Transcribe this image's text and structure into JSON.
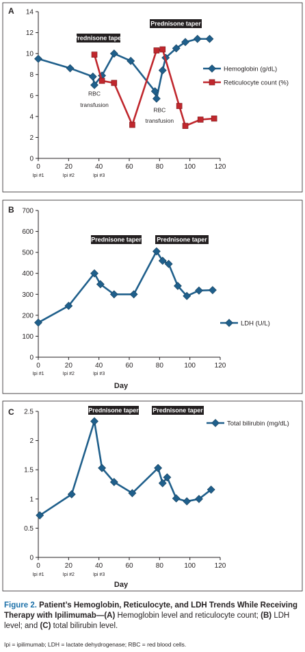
{
  "chart_data": [
    {
      "panel": "A",
      "type": "line",
      "x": [],
      "xlim": [
        0,
        120
      ],
      "ylim": [
        0,
        14
      ],
      "xticks": [
        0,
        20,
        40,
        60,
        80,
        100,
        120
      ],
      "yticks": [
        0,
        2,
        4,
        6,
        8,
        10,
        12,
        14
      ],
      "xlabel": "",
      "ylabel": "",
      "ipi_labels": [
        {
          "x": 0,
          "label": "Ipi #1"
        },
        {
          "x": 20,
          "label": "Ipi #2"
        },
        {
          "x": 40,
          "label": "Ipi #3"
        }
      ],
      "series": [
        {
          "name": "Hemoglobin (g/dL)",
          "color": "#1f5f8b",
          "marker": "diamond",
          "points": [
            [
              0,
              9.5
            ],
            [
              21,
              8.6
            ],
            [
              36,
              7.8
            ],
            [
              37,
              7.0
            ],
            [
              42,
              7.9
            ],
            [
              50,
              10.0
            ],
            [
              61,
              9.3
            ],
            [
              77,
              6.4
            ],
            [
              78,
              5.7
            ],
            [
              82,
              8.4
            ],
            [
              84,
              9.6
            ],
            [
              91,
              10.5
            ],
            [
              97,
              11.1
            ],
            [
              105,
              11.4
            ],
            [
              113,
              11.4
            ]
          ]
        },
        {
          "name": "Reticulocyte count (%)",
          "color": "#c0272d",
          "marker": "square",
          "points": [
            [
              37,
              9.9
            ],
            [
              42,
              7.4
            ],
            [
              50,
              7.2
            ],
            [
              62,
              3.2
            ],
            [
              78,
              10.3
            ],
            [
              82,
              10.4
            ],
            [
              93,
              5.0
            ],
            [
              97,
              3.1
            ],
            [
              107,
              3.7
            ],
            [
              116,
              3.8
            ]
          ]
        }
      ],
      "annotations": [
        {
          "text": "Prednisone taper",
          "x": 45
        },
        {
          "text": "Prednisone taper",
          "x": 96
        },
        {
          "text": "RBC",
          "x": 37,
          "y": 6.0
        },
        {
          "text": "transfusion",
          "x": 37,
          "y": 4.9
        },
        {
          "text": "RBC",
          "x": 80,
          "y": 4.4
        },
        {
          "text": "transfusion",
          "x": 80,
          "y": 3.4
        }
      ]
    },
    {
      "panel": "B",
      "type": "line",
      "xlim": [
        0,
        120
      ],
      "ylim": [
        0,
        700
      ],
      "xticks": [
        0,
        20,
        40,
        60,
        80,
        100,
        120
      ],
      "yticks": [
        0,
        100,
        200,
        300,
        400,
        500,
        600,
        700
      ],
      "xlabel": "Day",
      "ylabel": "",
      "ipi_labels": [
        {
          "x": 0,
          "label": "Ipi #1"
        },
        {
          "x": 20,
          "label": "Ipi #2"
        },
        {
          "x": 40,
          "label": "Ipi #3"
        }
      ],
      "series": [
        {
          "name": "LDH (U/L)",
          "color": "#1f5f8b",
          "marker": "diamond",
          "points": [
            [
              0,
              165
            ],
            [
              20,
              245
            ],
            [
              37,
              400
            ],
            [
              41,
              348
            ],
            [
              50,
              300
            ],
            [
              63,
              300
            ],
            [
              78,
              505
            ],
            [
              82,
              460
            ],
            [
              86,
              445
            ],
            [
              92,
              340
            ],
            [
              98,
              292
            ],
            [
              106,
              318
            ],
            [
              115,
              320
            ]
          ]
        }
      ],
      "annotations": [
        {
          "text": "Prednisone taper",
          "x": 51
        },
        {
          "text": "Prednisone taper",
          "x": 95
        }
      ]
    },
    {
      "panel": "C",
      "type": "line",
      "xlim": [
        0,
        120
      ],
      "ylim": [
        0,
        2.5
      ],
      "xticks": [
        0,
        20,
        40,
        60,
        80,
        100,
        120
      ],
      "yticks": [
        0,
        0.5,
        1,
        1.5,
        2,
        2.5
      ],
      "ytick_labels": [
        "0",
        "0.5",
        "1",
        "1.5",
        "2",
        "2.5"
      ],
      "xlabel": "Day",
      "ylabel": "",
      "ipi_labels": [
        {
          "x": 0,
          "label": "Ipi #1"
        },
        {
          "x": 20,
          "label": "Ipi #2"
        },
        {
          "x": 40,
          "label": "Ipi #3"
        }
      ],
      "series": [
        {
          "name": "Total bilirubin (mg/dL)",
          "color": "#1f5f8b",
          "marker": "diamond",
          "points": [
            [
              1,
              0.72
            ],
            [
              22,
              1.08
            ],
            [
              37,
              2.33
            ],
            [
              42,
              1.53
            ],
            [
              50,
              1.29
            ],
            [
              62,
              1.1
            ],
            [
              79,
              1.53
            ],
            [
              82,
              1.27
            ],
            [
              85,
              1.37
            ],
            [
              91,
              1.01
            ],
            [
              98,
              0.96
            ],
            [
              106,
              1.0
            ],
            [
              114,
              1.16
            ]
          ]
        }
      ],
      "annotations": [
        {
          "text": "Prednisone taper",
          "x": 50
        },
        {
          "text": "Prednisone taper",
          "x": 93
        }
      ]
    }
  ],
  "caption": {
    "label": "Figure 2.",
    "title": "Patient’s Hemoglobin, Reticulocyte, and LDH Trends While Receiving Therapy with Ipilimumab—",
    "parts": [
      {
        "letter": "(A)",
        "text": " Hemoglobin level and reticulocyte count; "
      },
      {
        "letter": "(B)",
        "text": " LDH level; and "
      },
      {
        "letter": "(C)",
        "text": " total bilirubin level."
      }
    ]
  },
  "footnote": "Ipi = ipilimumab; LDH = lactate dehydrogenase; RBC = red blood cells."
}
